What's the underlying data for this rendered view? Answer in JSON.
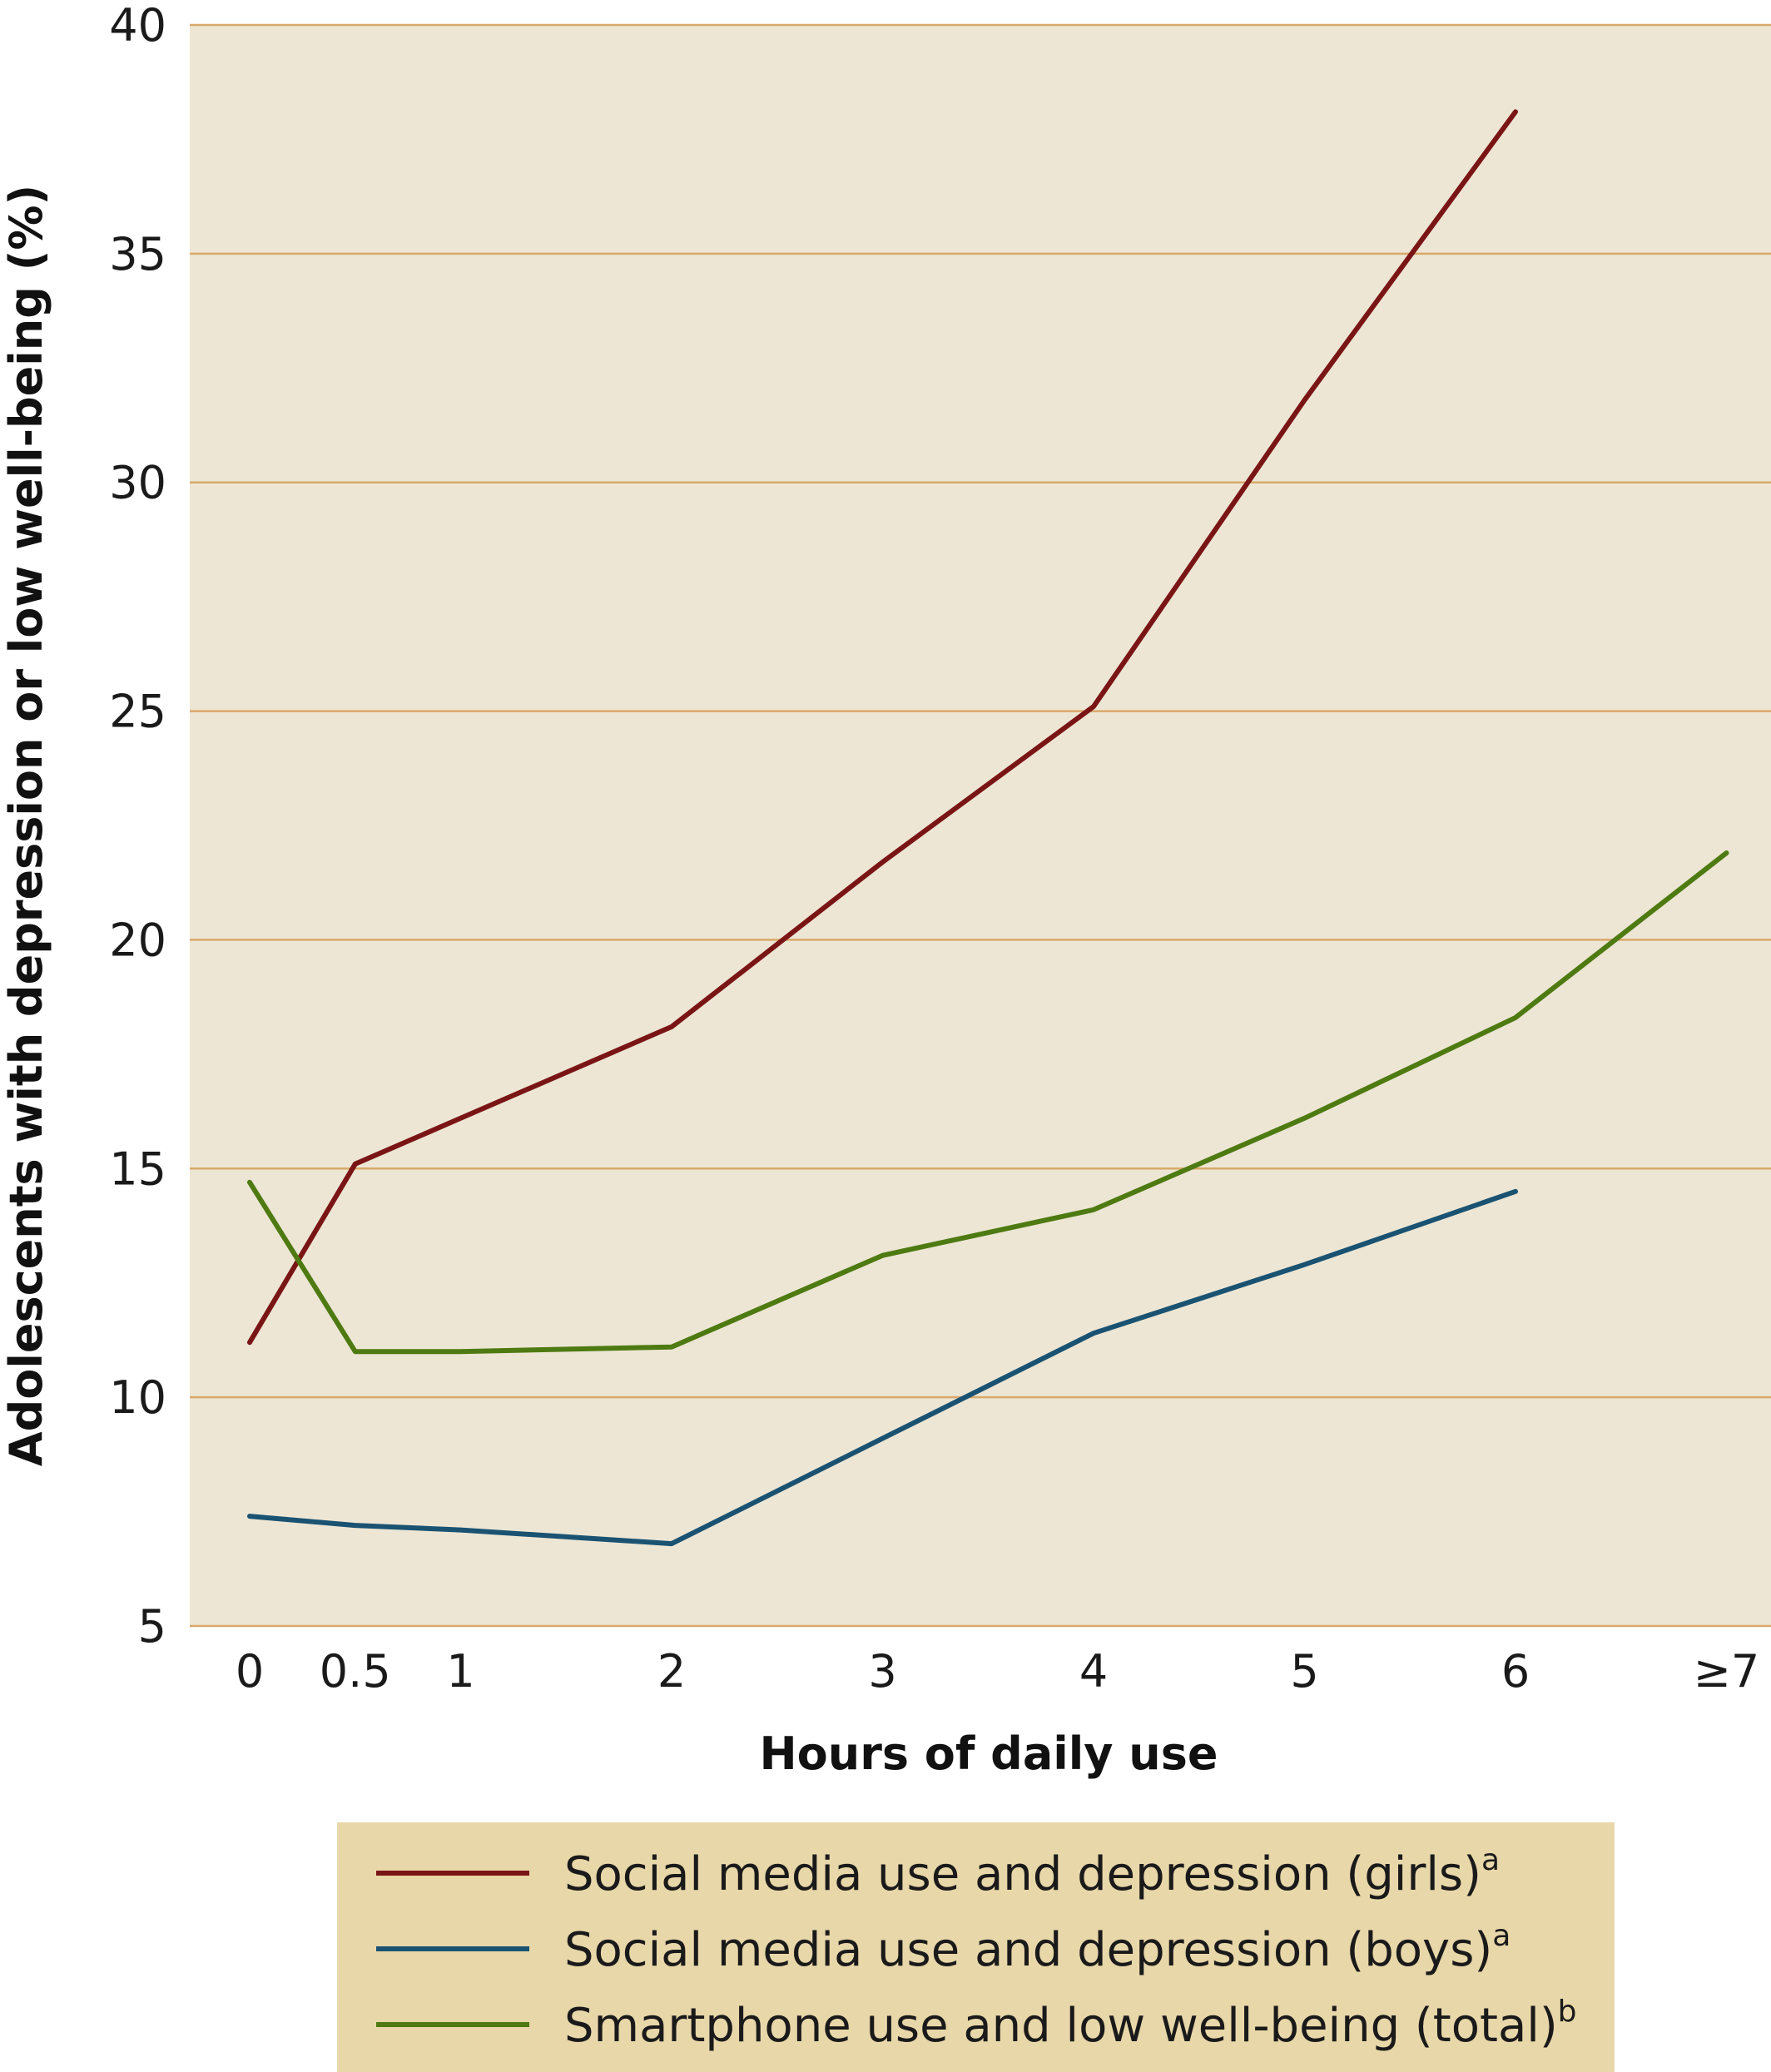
{
  "chart_data": {
    "type": "line",
    "xlabel": "Hours of daily use",
    "ylabel": "Adolescents with depression or low well-being (%)",
    "ylim": [
      5,
      40
    ],
    "yticks": [
      5,
      10,
      15,
      20,
      25,
      30,
      35,
      40
    ],
    "x_tick_labels": [
      "0",
      "0.5",
      "1",
      "2",
      "3",
      "4",
      "5",
      "6",
      "≥7"
    ],
    "x_tick_values": [
      0,
      0.5,
      1,
      2,
      3,
      4,
      5,
      6,
      7
    ],
    "xlim": [
      -0.3,
      7.3
    ],
    "grid": true,
    "legend_position": "bottom",
    "series": [
      {
        "name": "Social media use and depression (girls)",
        "superscript": "a",
        "color": "#7a1515",
        "x": [
          0,
          0.5,
          1,
          2,
          3,
          4,
          5,
          6
        ],
        "y": [
          11.2,
          15.1,
          16.1,
          18.1,
          21.7,
          25.1,
          31.8,
          38.1
        ]
      },
      {
        "name": "Social media use and depression (boys)",
        "superscript": "a",
        "color": "#1a5272",
        "x": [
          0,
          0.5,
          1,
          2,
          3,
          4,
          5,
          6
        ],
        "y": [
          7.4,
          7.2,
          7.1,
          6.8,
          9.1,
          11.4,
          12.9,
          14.5
        ]
      },
      {
        "name": "Smartphone use and low well-being (total)",
        "superscript": "b",
        "color": "#4e7a12",
        "x": [
          0,
          0.5,
          1,
          2,
          3,
          4,
          5,
          6,
          7
        ],
        "y": [
          14.7,
          11.0,
          11.0,
          11.1,
          13.1,
          14.1,
          16.1,
          18.3,
          21.9
        ]
      }
    ]
  },
  "colors": {
    "plot_background": "#ede6d4",
    "grid_line": "#d9a96a",
    "legend_background": "#e8d7a9"
  }
}
